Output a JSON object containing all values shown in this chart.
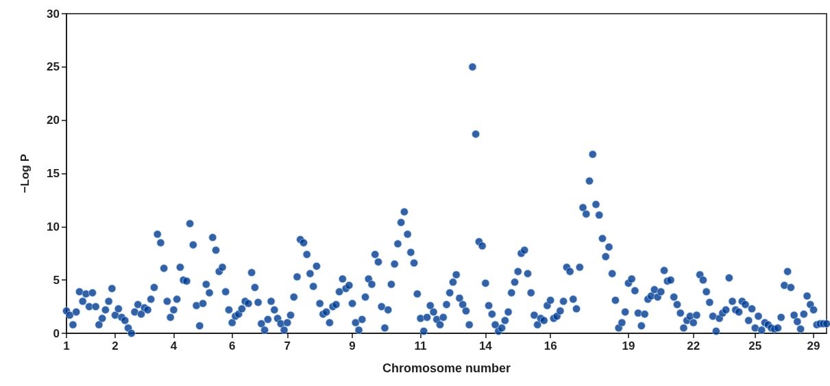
{
  "chart_data": {
    "type": "scatter",
    "xlabel": "Chromosome number",
    "ylabel": "−Log P",
    "categories": [
      "1",
      null,
      null,
      null,
      null,
      null,
      null,
      null,
      null,
      null,
      null,
      null,
      null,
      null,
      null,
      "2",
      null,
      null,
      null,
      null,
      null,
      null,
      null,
      null,
      null,
      null,
      null,
      null,
      null,
      null,
      null,
      null,
      null,
      "4",
      null,
      null,
      null,
      null,
      null,
      null,
      null,
      null,
      null,
      null,
      null,
      null,
      null,
      null,
      null,
      null,
      null,
      "6",
      null,
      null,
      null,
      null,
      null,
      null,
      null,
      null,
      null,
      null,
      null,
      null,
      null,
      null,
      null,
      null,
      "7",
      null,
      null,
      null,
      null,
      null,
      null,
      null,
      null,
      null,
      null,
      null,
      null,
      null,
      null,
      null,
      null,
      null,
      null,
      null,
      "9",
      null,
      null,
      null,
      null,
      null,
      null,
      null,
      null,
      null,
      null,
      null,
      null,
      null,
      null,
      null,
      null,
      null,
      null,
      null,
      null,
      "11",
      null,
      null,
      null,
      null,
      null,
      null,
      null,
      null,
      null,
      null,
      null,
      null,
      null,
      null,
      null,
      null,
      null,
      null,
      null,
      "14",
      null,
      null,
      null,
      null,
      null,
      null,
      null,
      null,
      null,
      null,
      null,
      null,
      null,
      null,
      null,
      null,
      null,
      null,
      null,
      "16",
      null,
      null,
      null,
      null,
      null,
      null,
      null,
      null,
      null,
      null,
      null,
      null,
      null,
      null,
      null,
      null,
      null,
      null,
      null,
      null,
      null,
      null,
      null,
      "19",
      null,
      null,
      null,
      null,
      null,
      null,
      null,
      null,
      null,
      null,
      null,
      null,
      null,
      null,
      null,
      null,
      null,
      null,
      null,
      "22",
      null,
      null,
      null,
      null,
      null,
      null,
      null,
      null,
      null,
      null,
      null,
      null,
      null,
      null,
      null,
      null,
      null,
      null,
      "25",
      null,
      null,
      null,
      null,
      null,
      null,
      null,
      null,
      null,
      null,
      null,
      null,
      null,
      null,
      null,
      null,
      null,
      "29",
      null,
      null,
      null,
      null
    ],
    "ylim": [
      0,
      30
    ],
    "yticks": [
      0,
      5,
      10,
      15,
      20,
      25,
      30
    ],
    "grid": false,
    "marker": "circle",
    "series": [
      {
        "color": "#003a8c",
        "values": [
          2.1,
          1.7,
          0.8,
          2.0,
          3.9,
          3.0,
          3.7,
          2.5,
          3.8,
          2.5,
          0.8,
          1.4,
          2.2,
          3.0,
          4.2,
          1.7,
          2.3,
          1.5,
          1.2,
          0.5,
          0.0,
          2.0,
          2.7,
          1.8,
          2.4,
          2.2,
          3.2,
          4.3,
          9.3,
          8.5,
          6.1,
          3.0,
          1.5,
          2.2,
          3.2,
          6.2,
          5.0,
          4.9,
          10.3,
          8.3,
          2.6,
          0.7,
          2.8,
          4.6,
          3.8,
          9.0,
          7.8,
          5.8,
          6.2,
          3.9,
          2.2,
          1.0,
          1.6,
          1.8,
          2.3,
          3.0,
          2.8,
          5.7,
          4.3,
          2.9,
          0.9,
          0.3,
          1.3,
          3.0,
          2.2,
          1.4,
          0.9,
          0.3,
          1.0,
          1.7,
          3.4,
          5.3,
          8.8,
          8.5,
          7.4,
          5.6,
          4.4,
          6.3,
          2.8,
          1.8,
          2.0,
          1.0,
          2.5,
          2.7,
          3.9,
          5.1,
          4.2,
          4.5,
          2.8,
          1.0,
          0.3,
          1.3,
          3.4,
          5.1,
          4.6,
          7.4,
          6.7,
          2.5,
          0.5,
          2.2,
          4.6,
          6.5,
          8.4,
          10.4,
          11.4,
          9.3,
          7.6,
          6.6,
          3.7,
          1.4,
          0.2,
          1.5,
          2.6,
          2.0,
          1.3,
          0.8,
          1.5,
          2.7,
          3.8,
          4.8,
          5.5,
          3.3,
          2.7,
          2.1,
          0.8,
          25.0,
          18.7,
          8.6,
          8.2,
          4.7,
          2.6,
          1.8,
          0.8,
          0.2,
          0.5,
          1.2,
          2.0,
          3.8,
          4.8,
          5.8,
          7.5,
          7.8,
          5.6,
          3.8,
          1.7,
          0.8,
          1.4,
          1.2,
          2.6,
          3.1,
          1.4,
          1.6,
          2.1,
          3.0,
          6.2,
          5.8,
          3.2,
          2.3,
          6.2,
          11.8,
          11.2,
          14.3,
          16.8,
          12.1,
          11.1,
          8.9,
          7.2,
          8.1,
          5.6,
          3.1,
          0.5,
          1.0,
          2.0,
          4.7,
          5.1,
          4.0,
          1.9,
          0.7,
          1.8,
          3.2,
          3.5,
          4.1,
          3.4,
          3.9,
          5.9,
          4.9,
          5.0,
          3.4,
          2.7,
          1.9,
          0.5,
          1.2,
          1.6,
          1.0,
          1.7,
          5.5,
          5.0,
          3.9,
          2.9,
          1.6,
          0.2,
          1.4,
          1.9,
          2.2,
          5.2,
          3.0,
          2.2,
          2.0,
          3.0,
          2.7,
          1.2,
          2.3,
          0.5,
          1.6,
          0.3,
          1.0,
          0.8,
          0.5,
          0.4,
          0.5,
          1.5,
          4.5,
          5.8,
          4.3,
          1.7,
          1.1,
          0.4,
          1.8,
          3.5,
          2.7,
          2.2,
          0.8,
          0.9,
          0.9,
          0.9
        ]
      }
    ]
  }
}
